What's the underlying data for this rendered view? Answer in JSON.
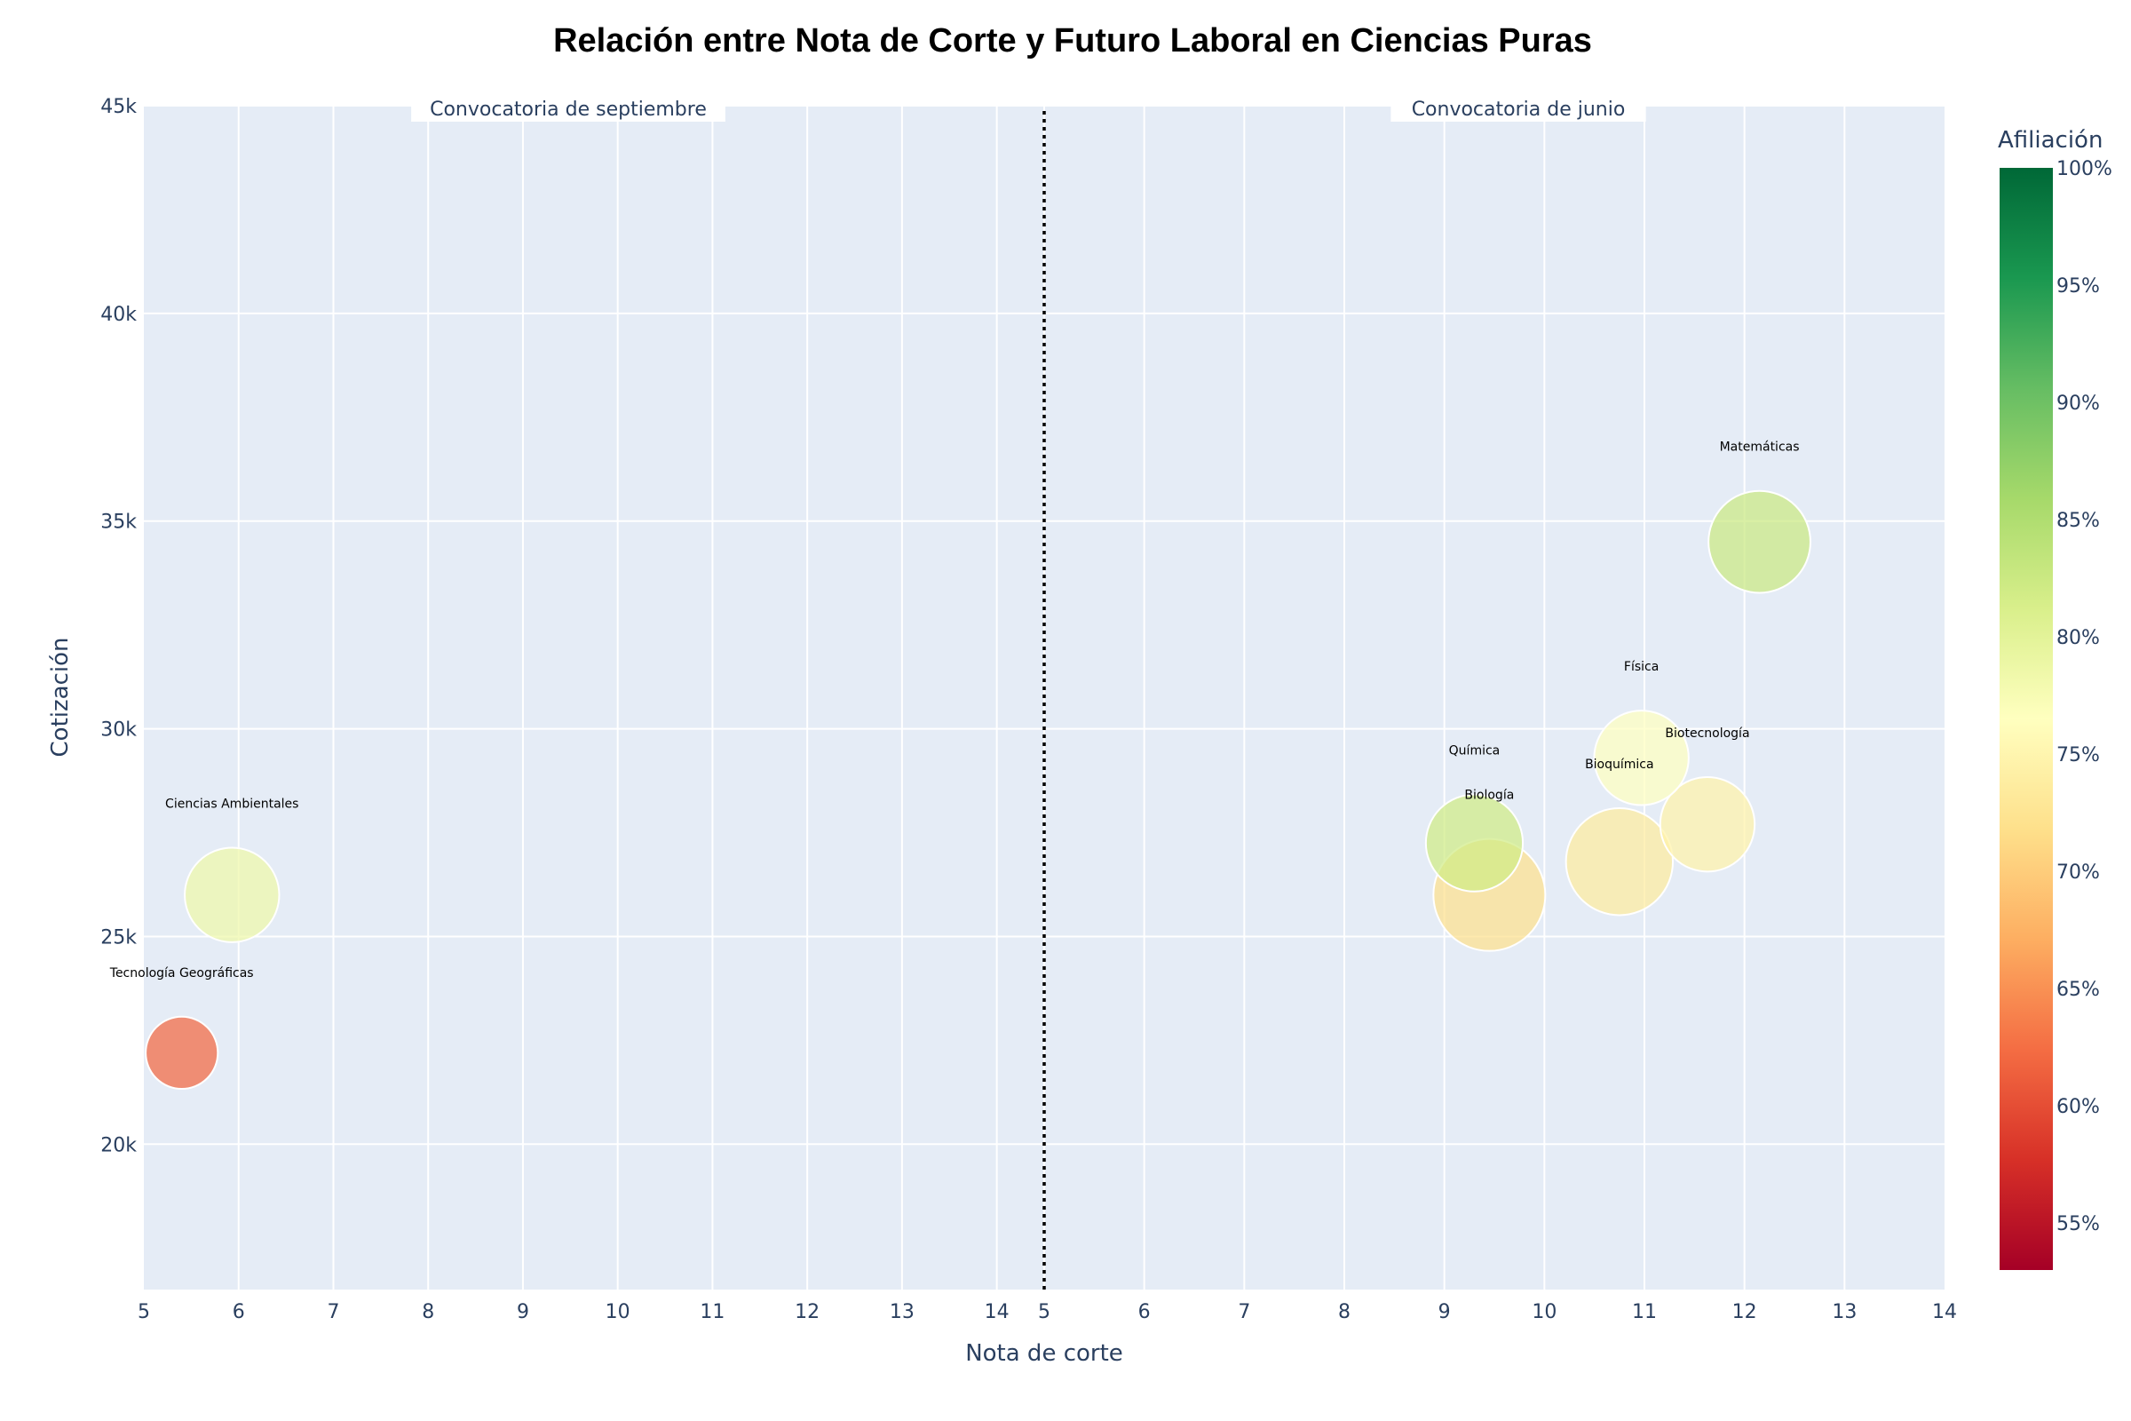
{
  "chart_data": {
    "type": "scatter",
    "title": "Relación entre Nota de Corte y Futuro Laboral en Ciencias Puras",
    "xlabel": "Nota de corte",
    "ylabel": "Cotización",
    "colorbar_title": "Afiliación",
    "ylim": [
      16500,
      45000
    ],
    "y_ticks": [
      20000,
      25000,
      30000,
      35000,
      40000,
      45000
    ],
    "y_tick_labels": [
      "20k",
      "25k",
      "30k",
      "35k",
      "40k",
      "45k"
    ],
    "panels": [
      {
        "name": "Convocatoria de septiembre",
        "xlim": [
          5,
          14.5
        ],
        "x_ticks": [
          5,
          6,
          7,
          8,
          9,
          10,
          11,
          12,
          13,
          14
        ],
        "points": [
          {
            "label": "Ciencias Ambientales",
            "x": 5.93,
            "y": 26000,
            "afiliacion": 78.5,
            "size": 76
          },
          {
            "label": "Tecnología Geográficas",
            "x": 5.4,
            "y": 22200,
            "afiliacion": 62,
            "size": 58
          }
        ]
      },
      {
        "name": "Convocatoria de junio",
        "xlim": [
          5,
          14
        ],
        "x_ticks": [
          5,
          6,
          7,
          8,
          9,
          10,
          11,
          12,
          13,
          14
        ],
        "points": [
          {
            "label": "Bioquímica",
            "x": 10.75,
            "y": 26800,
            "afiliacion": 73.5,
            "size": 86
          },
          {
            "label": "Biología",
            "x": 9.45,
            "y": 26000,
            "afiliacion": 72,
            "size": 90
          },
          {
            "label": "Química",
            "x": 9.3,
            "y": 27250,
            "afiliacion": 82,
            "size": 78
          },
          {
            "label": "Biotecnología",
            "x": 11.63,
            "y": 27700,
            "afiliacion": 74.5,
            "size": 76
          },
          {
            "label": "Física",
            "x": 10.97,
            "y": 29300,
            "afiliacion": 76.5,
            "size": 76
          },
          {
            "label": "Matemáticas",
            "x": 12.15,
            "y": 34500,
            "afiliacion": 82.5,
            "size": 82
          }
        ]
      }
    ],
    "colorbar": {
      "range": [
        53,
        100
      ],
      "ticks": [
        55,
        60,
        65,
        70,
        75,
        80,
        85,
        90,
        95,
        100
      ],
      "tick_labels": [
        "55%",
        "60%",
        "65%",
        "70%",
        "75%",
        "80%",
        "85%",
        "90%",
        "95%",
        "100%"
      ],
      "colorscale": [
        "#a50026",
        "#d73027",
        "#f46d43",
        "#fdae61",
        "#fee08b",
        "#ffffbf",
        "#d9ef8b",
        "#a6d96a",
        "#66bd63",
        "#1a9850",
        "#006837"
      ]
    },
    "divider": "dotted vertical line between panels",
    "grid": true
  }
}
